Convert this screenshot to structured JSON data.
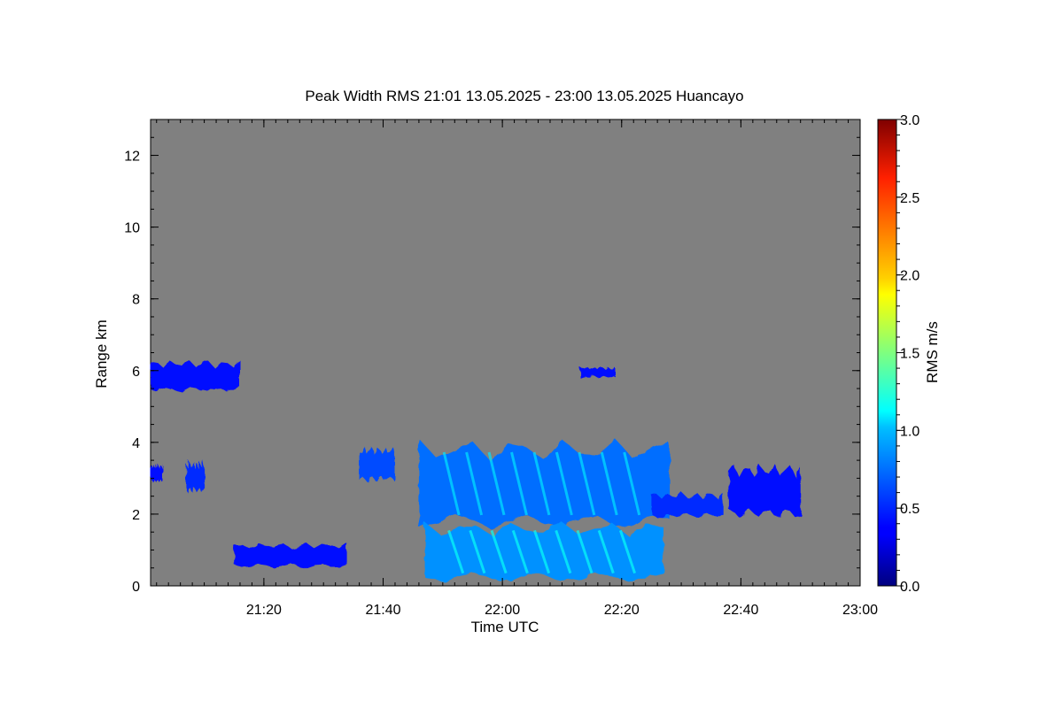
{
  "chart_data": {
    "type": "heatmap",
    "title": "Peak Width RMS   21:01 13.05.2025 - 23:00 13.05.2025 Huancayo",
    "xlabel": "Time UTC",
    "ylabel": "Range km",
    "x_unit": "minutes UTC",
    "xlim": [
      "21:01",
      "23:00"
    ],
    "ylim": [
      0,
      13
    ],
    "x_ticks": [
      "21:20",
      "21:40",
      "22:00",
      "22:20",
      "22:40",
      "23:00"
    ],
    "y_ticks": [
      "0",
      "2",
      "4",
      "6",
      "8",
      "10",
      "12"
    ],
    "background_color": "#808080",
    "colorbar": {
      "label": "RMS m/s",
      "range": [
        0,
        3
      ],
      "ticks": [
        "0.0",
        "0.5",
        "1.0",
        "1.5",
        "2.0",
        "2.5",
        "3.0"
      ],
      "colormap": "jet"
    },
    "regions": [
      {
        "name": "layer-6km-left",
        "time": [
          "21:01",
          "21:16"
        ],
        "range_km": [
          5.4,
          6.3
        ],
        "rms": 0.4
      },
      {
        "name": "layer-6km-mid",
        "time": [
          "22:13",
          "22:19"
        ],
        "range_km": [
          5.8,
          6.1
        ],
        "rms": 0.4
      },
      {
        "name": "echo-left-3km",
        "time": [
          "21:01",
          "21:03"
        ],
        "range_km": [
          2.9,
          3.4
        ],
        "rms": 0.4
      },
      {
        "name": "echo-3km-small",
        "time": [
          "21:07",
          "21:10"
        ],
        "range_km": [
          2.6,
          3.5
        ],
        "rms": 0.5
      },
      {
        "name": "echo-1km-scattered",
        "time": [
          "21:15",
          "21:34"
        ],
        "range_km": [
          0.5,
          1.2
        ],
        "rms": 0.4
      },
      {
        "name": "echo-21:36",
        "time": [
          "21:36",
          "21:42"
        ],
        "range_km": [
          2.9,
          3.9
        ],
        "rms": 0.6
      },
      {
        "name": "main-cloud-upper",
        "time": [
          "21:46",
          "22:28"
        ],
        "range_km": [
          1.6,
          4.1
        ],
        "rms": 0.7
      },
      {
        "name": "main-cloud-lower",
        "time": [
          "21:47",
          "22:27"
        ],
        "range_km": [
          0.1,
          1.8
        ],
        "rms": 0.8
      },
      {
        "name": "tail-22:28",
        "time": [
          "22:25",
          "22:37"
        ],
        "range_km": [
          1.9,
          2.6
        ],
        "rms": 0.5
      },
      {
        "name": "echo-22:38",
        "time": [
          "22:38",
          "22:50"
        ],
        "range_km": [
          1.9,
          3.4
        ],
        "rms": 0.4
      }
    ]
  }
}
